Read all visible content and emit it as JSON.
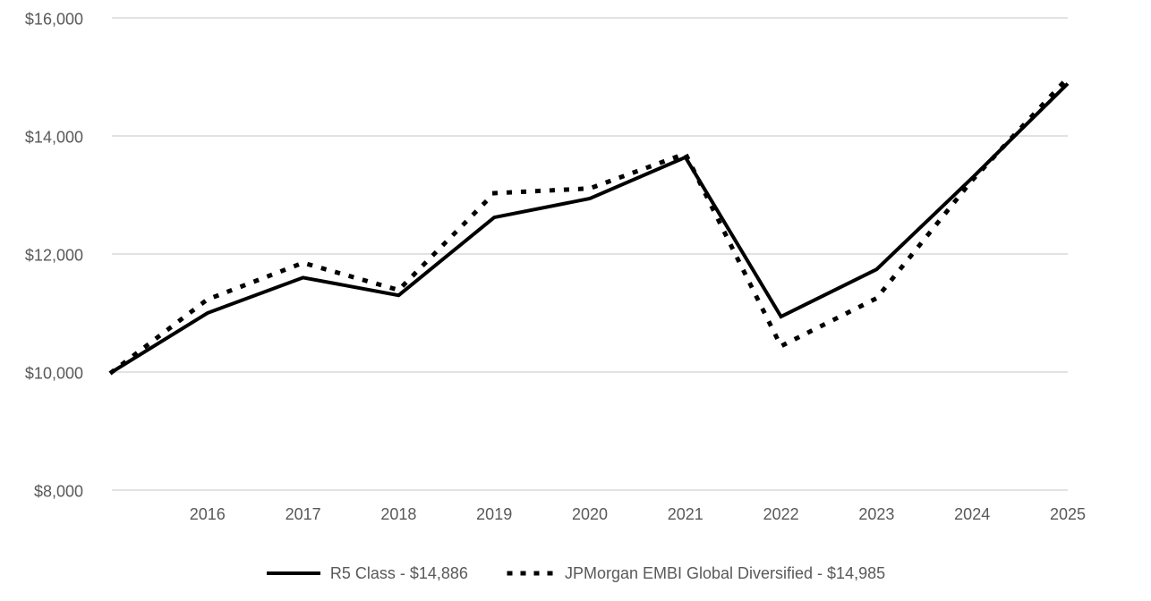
{
  "chart_data": {
    "type": "line",
    "title": "",
    "xlabel": "",
    "ylabel": "",
    "x_categories": [
      "",
      "2016",
      "2017",
      "2018",
      "2019",
      "2020",
      "2021",
      "2022",
      "2023",
      "2024",
      "2025"
    ],
    "series": [
      {
        "name": "R5 Class",
        "legend_label": "R5 Class - $14,886",
        "line_style": "solid",
        "color": "#000000",
        "final_value": 14886,
        "values": [
          10000,
          11000,
          11600,
          11300,
          12620,
          12940,
          13640,
          10940,
          11740,
          13290,
          14886
        ]
      },
      {
        "name": "JPMorgan EMBI Global Diversified",
        "legend_label": "JPMorgan EMBI Global Diversified - $14,985",
        "line_style": "dotted",
        "color": "#000000",
        "final_value": 14985,
        "values": [
          10000,
          11230,
          11850,
          11390,
          13030,
          13110,
          13700,
          10440,
          11250,
          13250,
          14985
        ]
      }
    ],
    "y_axis": {
      "min": 8000,
      "max": 16000,
      "tick_interval": 2000,
      "tick_values": [
        8000,
        10000,
        12000,
        14000,
        16000
      ],
      "tick_labels": [
        "$8,000",
        "$10,000",
        "$12,000",
        "$14,000",
        "$16,000"
      ]
    },
    "grid": "horizontal",
    "legend_position": "bottom",
    "colors": {
      "line": "#000000",
      "text": "#595959",
      "gridline": "#d9d9d9",
      "background": "#ffffff"
    }
  }
}
